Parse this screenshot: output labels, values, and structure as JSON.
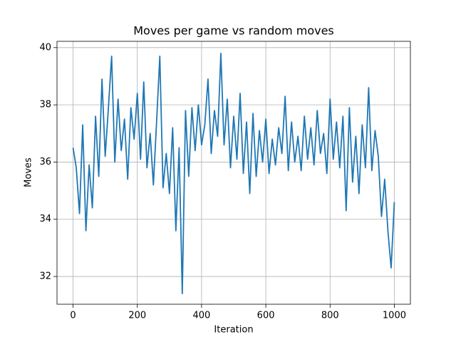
{
  "chart_data": {
    "type": "line",
    "title": "Moves per game vs random moves",
    "x_label": "Iteration",
    "y_label": "Moves",
    "color": "#1f77b4",
    "grid": true,
    "xlim": [
      -50,
      1050
    ],
    "ylim": [
      31.03,
      40.22
    ],
    "xticks": [
      0,
      200,
      400,
      600,
      800,
      1000
    ],
    "yticks": [
      32,
      34,
      36,
      38,
      40
    ],
    "x": [
      0,
      10,
      20,
      30,
      40,
      50,
      60,
      70,
      80,
      90,
      100,
      110,
      120,
      130,
      140,
      150,
      160,
      170,
      180,
      190,
      200,
      210,
      220,
      230,
      240,
      250,
      260,
      270,
      280,
      290,
      300,
      310,
      320,
      330,
      340,
      350,
      360,
      370,
      380,
      390,
      400,
      410,
      420,
      430,
      440,
      450,
      460,
      470,
      480,
      490,
      500,
      510,
      520,
      530,
      540,
      550,
      560,
      570,
      580,
      590,
      600,
      610,
      620,
      630,
      640,
      650,
      660,
      670,
      680,
      690,
      700,
      710,
      720,
      730,
      740,
      750,
      760,
      770,
      780,
      790,
      800,
      810,
      820,
      830,
      840,
      850,
      860,
      870,
      880,
      890,
      900,
      910,
      920,
      930,
      940,
      950,
      960,
      970,
      980,
      990,
      1000
    ],
    "values": [
      36.5,
      35.8,
      34.2,
      37.3,
      33.6,
      35.9,
      34.4,
      37.6,
      35.5,
      38.9,
      36.2,
      37.9,
      39.7,
      36.0,
      38.2,
      36.4,
      37.5,
      35.4,
      37.9,
      36.8,
      38.4,
      36.1,
      38.8,
      35.8,
      37.0,
      35.2,
      37.4,
      39.7,
      35.1,
      36.3,
      34.9,
      37.2,
      33.6,
      36.5,
      31.4,
      37.8,
      35.5,
      37.9,
      36.4,
      38.0,
      36.6,
      37.3,
      38.9,
      36.3,
      37.8,
      36.9,
      39.8,
      36.6,
      38.2,
      35.8,
      37.6,
      36.1,
      38.4,
      35.6,
      37.4,
      34.9,
      37.7,
      35.5,
      37.1,
      36.0,
      37.5,
      35.6,
      36.8,
      35.9,
      37.2,
      36.3,
      38.3,
      35.7,
      37.4,
      36.0,
      36.9,
      35.7,
      37.6,
      36.1,
      37.2,
      35.9,
      37.8,
      36.3,
      37.0,
      35.6,
      38.2,
      36.1,
      37.4,
      35.8,
      37.6,
      34.3,
      37.9,
      35.3,
      36.9,
      34.9,
      37.3,
      35.8,
      38.6,
      35.7,
      37.1,
      36.2,
      34.1,
      35.4,
      33.6,
      32.3,
      34.6
    ]
  }
}
